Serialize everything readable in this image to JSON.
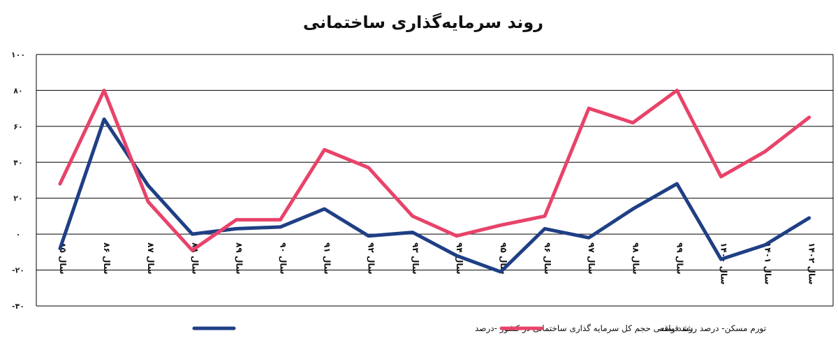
{
  "chart_data": {
    "type": "line",
    "title": "روند سرمایه‌گذاری ساختمانی",
    "xlabel": "",
    "ylabel": "",
    "ylim": [
      -40,
      100
    ],
    "y_ticks": [
      "۱۰۰",
      "۸۰",
      "۶۰",
      "۴۰",
      "۲۰",
      "۰",
      "-۲۰",
      "-۴۰"
    ],
    "y_tick_values": [
      100,
      80,
      60,
      40,
      20,
      0,
      -20,
      -40
    ],
    "grid": true,
    "legend_position": "bottom",
    "categories": [
      "سال ۸۵",
      "سال ۸۶",
      "سال ۸۷",
      "سال ۸۸",
      "سال ۸۹",
      "سال ۹۰",
      "سال ۹۱",
      "سال ۹۲",
      "سال ۹۳",
      "سال ۹۴",
      "سال ۹۵",
      "سال ۹۶",
      "سال ۹۷",
      "سال ۹۸",
      "سال ۹۹",
      "سال ۱۴۰۰",
      "سال ۱۴۰۱",
      "سال ۱۴۰۲"
    ],
    "series": [
      {
        "name": "رشد واقعی حجم کل سرمایه گذاری ساختمانی در کشور -درصد",
        "color": "#1f3f85",
        "values": [
          -8,
          64,
          27,
          0,
          3,
          4,
          14,
          -1,
          1,
          -12,
          -21,
          3,
          -2,
          14,
          28,
          -14,
          -6,
          9
        ]
      },
      {
        "name": "تورم مسکن- درصد رشد قیمت",
        "color": "#e8436a",
        "values": [
          28,
          80,
          18,
          -9,
          8,
          8,
          47,
          37,
          10,
          -1,
          5,
          10,
          70,
          62,
          80,
          32,
          46,
          65
        ]
      }
    ]
  }
}
